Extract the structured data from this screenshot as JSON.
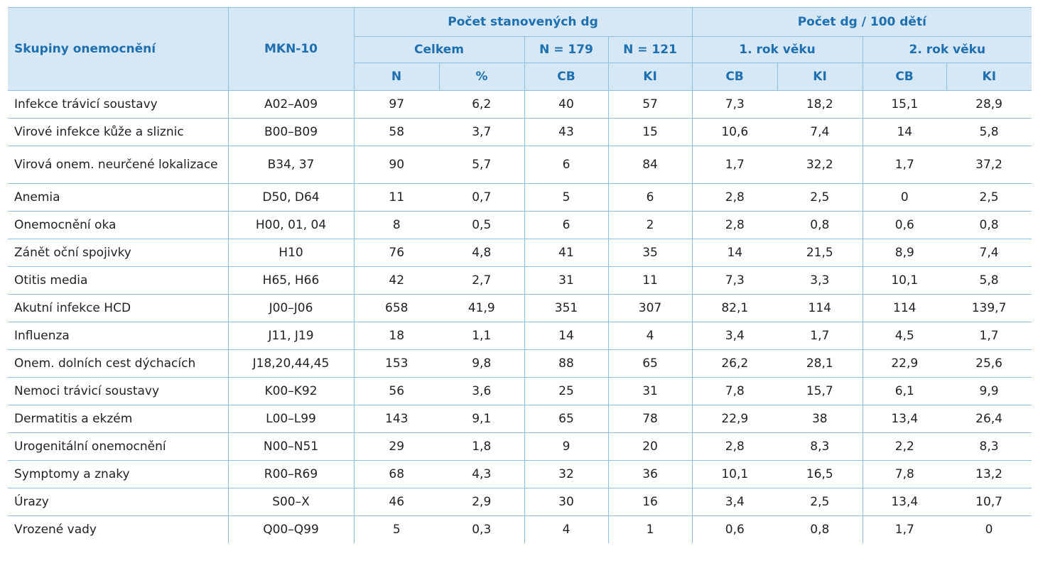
{
  "headers": {
    "group": "Skupiny onemocnění",
    "mkn": "MKN-10",
    "pocet_stanovenych": "Počet stanovených dg",
    "pocet_per_100": "Počet dg / 100 dětí",
    "celkem": "Celkem",
    "n179": "N = 179",
    "n121": "N = 121",
    "rok1": "1. rok věku",
    "rok2": "2. rok věku",
    "n": "N",
    "pct": "%",
    "cb": "CB",
    "ki": "KI",
    "cb1": "CB",
    "ki1": "KI",
    "cb2": "CB",
    "ki2": "KI"
  },
  "rows": [
    {
      "name": "Infekce trávicí soustavy",
      "mkn": "A02–A09",
      "n": "97",
      "pct": "6,2",
      "cb": "40",
      "ki": "57",
      "cb1": "7,3",
      "ki1": "18,2",
      "cb2": "15,1",
      "ki2": "28,9"
    },
    {
      "name": "Virové infekce kůže a sliznic",
      "mkn": "B00–B09",
      "n": "58",
      "pct": "3,7",
      "cb": "43",
      "ki": "15",
      "cb1": "10,6",
      "ki1": "7,4",
      "cb2": "14",
      "ki2": "5,8"
    },
    {
      "name": "Virová onem. neurčené lokalizace",
      "mkn": "B34, 37",
      "n": "90",
      "pct": "5,7",
      "cb": "6",
      "ki": "84",
      "cb1": "1,7",
      "ki1": "32,2",
      "cb2": "1,7",
      "ki2": "37,2"
    },
    {
      "name": "Anemia",
      "mkn": "D50, D64",
      "n": "11",
      "pct": "0,7",
      "cb": "5",
      "ki": "6",
      "cb1": "2,8",
      "ki1": "2,5",
      "cb2": "0",
      "ki2": "2,5"
    },
    {
      "name": "Onemocnění oka",
      "mkn": "H00, 01, 04",
      "n": "8",
      "pct": "0,5",
      "cb": "6",
      "ki": "2",
      "cb1": "2,8",
      "ki1": "0,8",
      "cb2": "0,6",
      "ki2": "0,8"
    },
    {
      "name": "Zánět oční spojivky",
      "mkn": "H10",
      "n": "76",
      "pct": "4,8",
      "cb": "41",
      "ki": "35",
      "cb1": "14",
      "ki1": "21,5",
      "cb2": "8,9",
      "ki2": "7,4"
    },
    {
      "name": "Otitis media",
      "mkn": "H65, H66",
      "n": "42",
      "pct": "2,7",
      "cb": "31",
      "ki": "11",
      "cb1": "7,3",
      "ki1": "3,3",
      "cb2": "10,1",
      "ki2": "5,8"
    },
    {
      "name": "Akutní infekce HCD",
      "mkn": "J00–J06",
      "n": "658",
      "pct": "41,9",
      "cb": "351",
      "ki": "307",
      "cb1": "82,1",
      "ki1": "114",
      "cb2": "114",
      "ki2": "139,7"
    },
    {
      "name": "Influenza",
      "mkn": "J11, J19",
      "n": "18",
      "pct": "1,1",
      "cb": "14",
      "ki": "4",
      "cb1": "3,4",
      "ki1": "1,7",
      "cb2": "4,5",
      "ki2": "1,7"
    },
    {
      "name": "Onem. dolních cest dýchacích",
      "mkn": "J18,20,44,45",
      "n": "153",
      "pct": "9,8",
      "cb": "88",
      "ki": "65",
      "cb1": "26,2",
      "ki1": "28,1",
      "cb2": "22,9",
      "ki2": "25,6"
    },
    {
      "name": "Nemoci trávicí soustavy",
      "mkn": "K00–K92",
      "n": "56",
      "pct": "3,6",
      "cb": "25",
      "ki": "31",
      "cb1": "7,8",
      "ki1": "15,7",
      "cb2": "6,1",
      "ki2": "9,9"
    },
    {
      "name": "Dermatitis a ekzém",
      "mkn": "L00–L99",
      "n": "143",
      "pct": "9,1",
      "cb": "65",
      "ki": "78",
      "cb1": "22,9",
      "ki1": "38",
      "cb2": "13,4",
      "ki2": "26,4"
    },
    {
      "name": "Urogenitální onemocnění",
      "mkn": "N00–N51",
      "n": "29",
      "pct": "1,8",
      "cb": "9",
      "ki": "20",
      "cb1": "2,8",
      "ki1": "8,3",
      "cb2": "2,2",
      "ki2": "8,3"
    },
    {
      "name": "Symptomy a znaky",
      "mkn": "R00–R69",
      "n": "68",
      "pct": "4,3",
      "cb": "32",
      "ki": "36",
      "cb1": "10,1",
      "ki1": "16,5",
      "cb2": "7,8",
      "ki2": "13,2"
    },
    {
      "name": "Úrazy",
      "mkn": "S00–X",
      "n": "46",
      "pct": "2,9",
      "cb": "30",
      "ki": "16",
      "cb1": "3,4",
      "ki1": "2,5",
      "cb2": "13,4",
      "ki2": "10,7"
    },
    {
      "name": "Vrozené vady",
      "mkn": "Q00–Q99",
      "n": "5",
      "pct": "0,3",
      "cb": "4",
      "ki": "1",
      "cb1": "0,6",
      "ki1": "0,8",
      "cb2": "1,7",
      "ki2": "0"
    }
  ]
}
